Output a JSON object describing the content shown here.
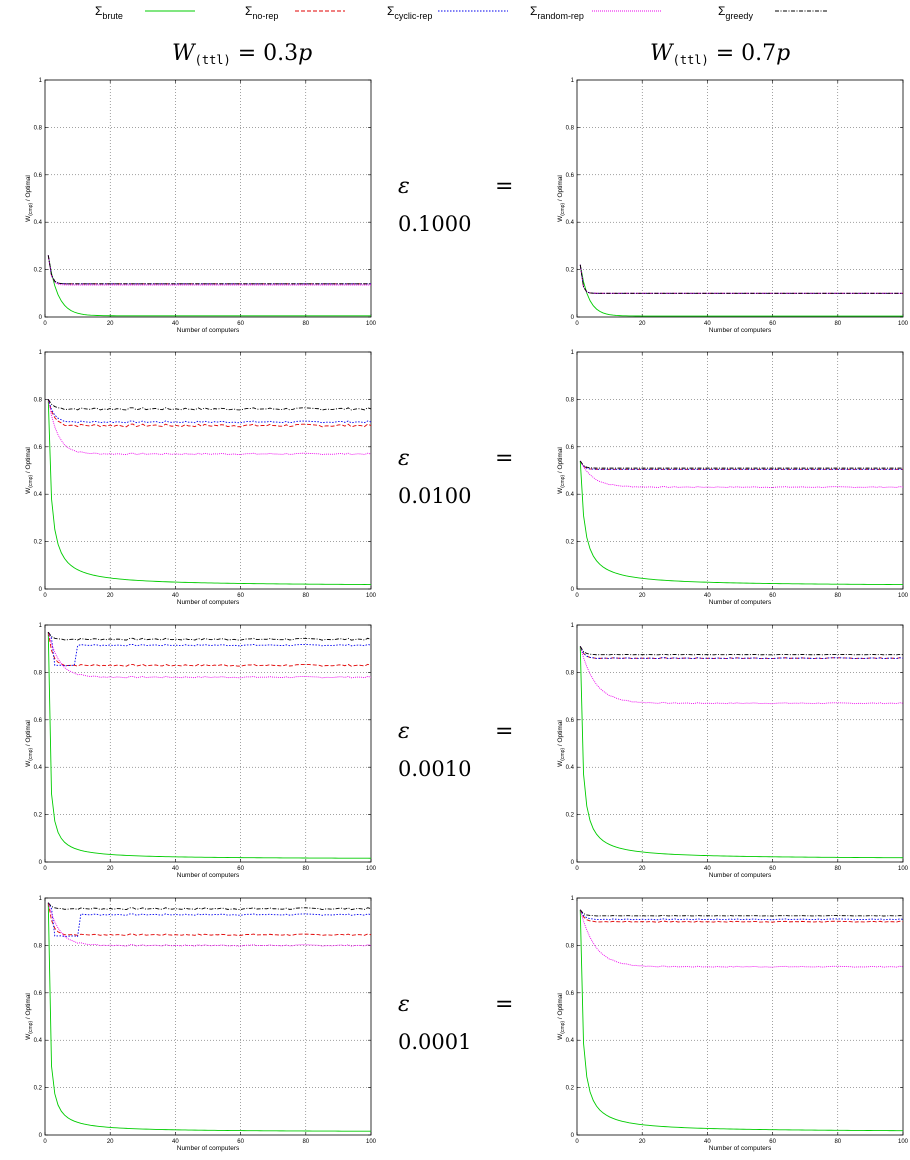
{
  "legend": [
    {
      "symbol": "Σ",
      "sub": "brute",
      "color": "#00cc00",
      "dash": ""
    },
    {
      "symbol": "Σ",
      "sub": "no-rep",
      "color": "#e00000",
      "dash": "4,2"
    },
    {
      "symbol": "Σ",
      "sub": "cyclic-rep",
      "color": "#0000ee",
      "dash": "1.5,1.5"
    },
    {
      "symbol": "Σ",
      "sub": "random-rep",
      "color": "#ee00ee",
      "dash": "1,1"
    },
    {
      "symbol": "Σ",
      "sub": "greedy",
      "color": "#000000",
      "dash": "4,1.5,1,1.5"
    }
  ],
  "column_titles": [
    {
      "main": "W",
      "sub": "(ttl)",
      "rest": " = 0.3",
      "var": "p"
    },
    {
      "main": "W",
      "sub": "(ttl)",
      "rest": " = 0.7",
      "var": "p"
    }
  ],
  "row_labels": [
    {
      "eps": "ε",
      "eq": "=",
      "value": "0.1000"
    },
    {
      "eps": "ε",
      "eq": "=",
      "value": "0.0100"
    },
    {
      "eps": "ε",
      "eq": "=",
      "value": "0.0010"
    },
    {
      "eps": "ε",
      "eq": "=",
      "value": "0.0001"
    }
  ],
  "axes": {
    "xlabel": "Number of computers",
    "ylabel_main": "W",
    "ylabel_sub": "(cmp)",
    "ylabel_rest": " / Optimal",
    "xlim": [
      0,
      100
    ],
    "ylim": [
      0,
      1
    ],
    "xticks": [
      0,
      20,
      40,
      60,
      80,
      100
    ],
    "yticks": [
      0,
      0.2,
      0.4,
      0.6,
      0.8,
      1
    ],
    "grid": true
  },
  "chart_data": [
    {
      "type": "line",
      "row": 0,
      "col": 0,
      "epsilon": "0.1000",
      "w_ttl": "0.3p",
      "series": [
        {
          "key": "brute",
          "start": 0.26,
          "floor": 0.005,
          "rate": 0.35,
          "noise": 0
        },
        {
          "key": "no-rep",
          "start": 0.26,
          "floor": 0.14,
          "rate": 1.2,
          "noise": 0
        },
        {
          "key": "cyclic-rep",
          "start": 0.26,
          "floor": 0.14,
          "rate": 1.2,
          "noise": 0
        },
        {
          "key": "random-rep",
          "start": 0.26,
          "floor": 0.135,
          "rate": 1.2,
          "noise": 0
        },
        {
          "key": "greedy",
          "start": 0.26,
          "floor": 0.14,
          "rate": 1.2,
          "noise": 0
        }
      ]
    },
    {
      "type": "line",
      "row": 0,
      "col": 1,
      "epsilon": "0.1000",
      "w_ttl": "0.7p",
      "series": [
        {
          "key": "brute",
          "start": 0.22,
          "floor": 0.004,
          "rate": 0.4,
          "noise": 0
        },
        {
          "key": "no-rep",
          "start": 0.22,
          "floor": 0.1,
          "rate": 1.5,
          "noise": 0
        },
        {
          "key": "cyclic-rep",
          "start": 0.22,
          "floor": 0.1,
          "rate": 1.5,
          "noise": 0
        },
        {
          "key": "random-rep",
          "start": 0.22,
          "floor": 0.1,
          "rate": 1.5,
          "noise": 0
        },
        {
          "key": "greedy",
          "start": 0.22,
          "floor": 0.1,
          "rate": 1.5,
          "noise": 0
        }
      ]
    },
    {
      "type": "line",
      "row": 1,
      "col": 0,
      "epsilon": "0.0100",
      "w_ttl": "0.3p",
      "series": [
        {
          "key": "brute",
          "start": 0.8,
          "floor": 0.0,
          "rate": 0,
          "hyper": 1.3,
          "noise": 0
        },
        {
          "key": "no-rep",
          "start": 0.8,
          "floor": 0.69,
          "rate": 0.6,
          "noise": 0.006
        },
        {
          "key": "cyclic-rep",
          "start": 0.8,
          "floor": 0.705,
          "rate": 0.6,
          "noise": 0.004
        },
        {
          "key": "random-rep",
          "start": 0.8,
          "floor": 0.57,
          "rate": 0.35,
          "noise": 0.003
        },
        {
          "key": "greedy",
          "start": 0.8,
          "floor": 0.76,
          "rate": 0.7,
          "noise": 0.005
        }
      ]
    },
    {
      "type": "line",
      "row": 1,
      "col": 1,
      "epsilon": "0.0100",
      "w_ttl": "0.7p",
      "series": [
        {
          "key": "brute",
          "start": 0.54,
          "floor": 0.0,
          "rate": 0,
          "hyper": 0.9,
          "noise": 0
        },
        {
          "key": "no-rep",
          "start": 0.54,
          "floor": 0.505,
          "rate": 1.0,
          "noise": 0
        },
        {
          "key": "cyclic-rep",
          "start": 0.54,
          "floor": 0.505,
          "rate": 1.0,
          "noise": 0
        },
        {
          "key": "random-rep",
          "start": 0.54,
          "floor": 0.43,
          "rate": 0.25,
          "noise": 0.002
        },
        {
          "key": "greedy",
          "start": 0.54,
          "floor": 0.51,
          "rate": 1.0,
          "noise": 0
        }
      ]
    },
    {
      "type": "line",
      "row": 2,
      "col": 0,
      "epsilon": "0.0010",
      "w_ttl": "0.3p",
      "series": [
        {
          "key": "brute",
          "start": 0.97,
          "floor": 0.0,
          "rate": 0,
          "hyper": 2.8,
          "noise": 0
        },
        {
          "key": "no-rep",
          "start": 0.97,
          "floor": 0.83,
          "rate": 0.8,
          "noise": 0.004
        },
        {
          "key": "cyclic-rep",
          "start": 0.97,
          "floor": 0.915,
          "rate": 0.6,
          "noise": 0.003,
          "dip": [
            3,
            9,
            0.83
          ]
        },
        {
          "key": "random-rep",
          "start": 0.97,
          "floor": 0.78,
          "rate": 0.3,
          "noise": 0.003
        },
        {
          "key": "greedy",
          "start": 0.97,
          "floor": 0.94,
          "rate": 1.0,
          "noise": 0.004
        }
      ]
    },
    {
      "type": "line",
      "row": 2,
      "col": 1,
      "epsilon": "0.0010",
      "w_ttl": "0.7p",
      "series": [
        {
          "key": "brute",
          "start": 0.91,
          "floor": 0.0,
          "rate": 0,
          "hyper": 1.7,
          "noise": 0
        },
        {
          "key": "no-rep",
          "start": 0.91,
          "floor": 0.86,
          "rate": 0.9,
          "noise": 0.002
        },
        {
          "key": "cyclic-rep",
          "start": 0.91,
          "floor": 0.86,
          "rate": 0.9,
          "noise": 0.002
        },
        {
          "key": "random-rep",
          "start": 0.91,
          "floor": 0.67,
          "rate": 0.22,
          "noise": 0.002
        },
        {
          "key": "greedy",
          "start": 0.91,
          "floor": 0.875,
          "rate": 1.0,
          "noise": 0.001
        }
      ]
    },
    {
      "type": "line",
      "row": 3,
      "col": 0,
      "epsilon": "0.0001",
      "w_ttl": "0.3p",
      "series": [
        {
          "key": "brute",
          "start": 0.98,
          "floor": 0.0,
          "rate": 0,
          "hyper": 2.8,
          "noise": 0
        },
        {
          "key": "no-rep",
          "start": 0.98,
          "floor": 0.845,
          "rate": 0.8,
          "noise": 0.003
        },
        {
          "key": "cyclic-rep",
          "start": 0.98,
          "floor": 0.93,
          "rate": 0.6,
          "noise": 0.003,
          "dip": [
            3,
            10,
            0.84
          ]
        },
        {
          "key": "random-rep",
          "start": 0.98,
          "floor": 0.8,
          "rate": 0.3,
          "noise": 0.003
        },
        {
          "key": "greedy",
          "start": 0.98,
          "floor": 0.955,
          "rate": 1.0,
          "noise": 0.004
        }
      ]
    },
    {
      "type": "line",
      "row": 3,
      "col": 1,
      "epsilon": "0.0001",
      "w_ttl": "0.7p",
      "series": [
        {
          "key": "brute",
          "start": 0.95,
          "floor": 0.0,
          "rate": 0,
          "hyper": 1.7,
          "noise": 0
        },
        {
          "key": "no-rep",
          "start": 0.95,
          "floor": 0.9,
          "rate": 0.9,
          "noise": 0.002
        },
        {
          "key": "cyclic-rep",
          "start": 0.95,
          "floor": 0.91,
          "rate": 0.9,
          "noise": 0.002
        },
        {
          "key": "random-rep",
          "start": 0.95,
          "floor": 0.71,
          "rate": 0.22,
          "noise": 0.002
        },
        {
          "key": "greedy",
          "start": 0.95,
          "floor": 0.925,
          "rate": 1.0,
          "noise": 0.001
        }
      ]
    }
  ]
}
